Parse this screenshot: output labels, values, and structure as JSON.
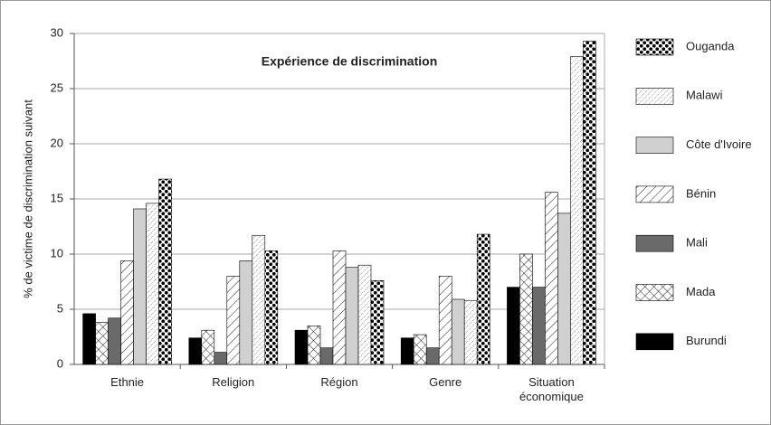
{
  "chart_data": {
    "type": "bar",
    "title": "Expérience de discrimination",
    "y_label": "% de victime de discrimination suivant",
    "categories": [
      "Ethnie",
      "Religion",
      "Région",
      "Genre",
      "Situation économique"
    ],
    "series": [
      {
        "name": "Ouganda",
        "color": "#000000",
        "values": [
          16.8,
          10.3,
          7.6,
          11.8,
          29.3
        ]
      },
      {
        "name": "Malawi",
        "color": "#555555",
        "values": [
          14.6,
          11.7,
          9.0,
          5.8,
          27.9
        ]
      },
      {
        "name": "Côte d'Ivoire",
        "color": "#d0d0d0",
        "values": [
          14.1,
          9.4,
          8.8,
          5.9,
          13.7
        ]
      },
      {
        "name": "Bénin",
        "color": "#222222",
        "values": [
          9.4,
          8.0,
          10.3,
          8.0,
          15.6
        ]
      },
      {
        "name": "Mali",
        "color": "#6a6a6a",
        "values": [
          4.2,
          1.1,
          1.5,
          1.5,
          7.0
        ]
      },
      {
        "name": "Mada",
        "color": "#222222",
        "values": [
          3.8,
          3.1,
          3.5,
          2.7,
          10.0
        ]
      },
      {
        "name": "Burundi",
        "color": "#000000",
        "values": [
          4.6,
          2.4,
          3.1,
          2.4,
          7.0
        ]
      }
    ],
    "ylim": [
      0,
      30
    ],
    "yticks": [
      0,
      5,
      10,
      15,
      20,
      25,
      30
    ],
    "grid": true
  }
}
